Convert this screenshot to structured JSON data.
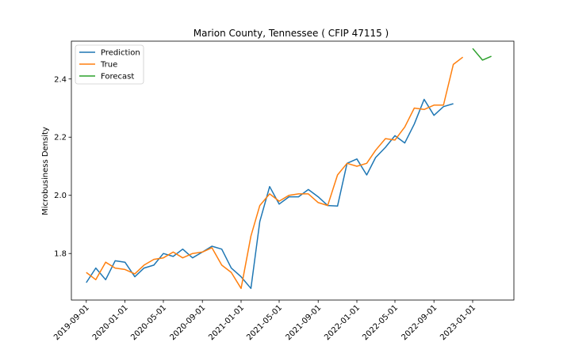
{
  "chart_data": {
    "type": "line",
    "title": "Marion County, Tennessee ( CFIP 47115 )",
    "xlabel": "",
    "ylabel": "Microbusiness Density",
    "xlim": [
      "2019-07-16",
      "2023-05-11"
    ],
    "ylim": [
      1.64,
      2.53
    ],
    "x_ticks": [
      "2019-09-01",
      "2020-01-01",
      "2020-05-01",
      "2020-09-01",
      "2021-01-01",
      "2021-05-01",
      "2021-09-01",
      "2022-01-01",
      "2022-05-01",
      "2022-09-01",
      "2023-01-01"
    ],
    "y_ticks": [
      "1.8",
      "2.0",
      "2.2",
      "2.4"
    ],
    "legend_location": "upper-left",
    "grid": false,
    "series": [
      {
        "name": "Prediction",
        "color": "#1f77b4",
        "x": [
          "2019-09-01",
          "2019-10-01",
          "2019-11-01",
          "2019-12-01",
          "2020-01-01",
          "2020-02-01",
          "2020-03-01",
          "2020-04-01",
          "2020-05-01",
          "2020-06-01",
          "2020-07-01",
          "2020-08-01",
          "2020-09-01",
          "2020-10-01",
          "2020-11-01",
          "2020-12-01",
          "2021-01-01",
          "2021-02-01",
          "2021-03-01",
          "2021-04-01",
          "2021-05-01",
          "2021-06-01",
          "2021-07-01",
          "2021-08-01",
          "2021-09-01",
          "2021-10-01",
          "2021-11-01",
          "2021-12-01",
          "2022-01-01",
          "2022-02-01",
          "2022-03-01",
          "2022-04-01",
          "2022-05-01",
          "2022-06-01",
          "2022-07-01",
          "2022-08-01",
          "2022-09-01",
          "2022-10-01",
          "2022-11-01"
        ],
        "values": [
          1.7,
          1.75,
          1.71,
          1.775,
          1.77,
          1.72,
          1.75,
          1.76,
          1.8,
          1.79,
          1.815,
          1.785,
          1.805,
          1.825,
          1.815,
          1.75,
          1.72,
          1.68,
          1.91,
          2.03,
          1.97,
          1.995,
          1.995,
          2.02,
          1.995,
          1.965,
          1.963,
          2.11,
          2.125,
          2.07,
          2.13,
          2.165,
          2.205,
          2.18,
          2.245,
          2.33,
          2.275,
          2.305,
          2.315
        ]
      },
      {
        "name": "True",
        "color": "#ff7f0e",
        "x": [
          "2019-09-01",
          "2019-10-01",
          "2019-11-01",
          "2019-12-01",
          "2020-01-01",
          "2020-02-01",
          "2020-03-01",
          "2020-04-01",
          "2020-05-01",
          "2020-06-01",
          "2020-07-01",
          "2020-08-01",
          "2020-09-01",
          "2020-10-01",
          "2020-11-01",
          "2020-12-01",
          "2021-01-01",
          "2021-02-01",
          "2021-03-01",
          "2021-04-01",
          "2021-05-01",
          "2021-06-01",
          "2021-07-01",
          "2021-08-01",
          "2021-09-01",
          "2021-10-01",
          "2021-11-01",
          "2021-12-01",
          "2022-01-01",
          "2022-02-01",
          "2022-03-01",
          "2022-04-01",
          "2022-05-01",
          "2022-06-01",
          "2022-07-01",
          "2022-08-01",
          "2022-09-01",
          "2022-10-01",
          "2022-11-01",
          "2022-12-01"
        ],
        "values": [
          1.735,
          1.71,
          1.77,
          1.75,
          1.745,
          1.73,
          1.76,
          1.78,
          1.785,
          1.805,
          1.785,
          1.8,
          1.805,
          1.82,
          1.76,
          1.735,
          1.68,
          1.86,
          1.965,
          2.005,
          1.98,
          2.0,
          2.005,
          2.005,
          1.975,
          1.965,
          2.07,
          2.11,
          2.1,
          2.11,
          2.155,
          2.195,
          2.19,
          2.235,
          2.3,
          2.295,
          2.31,
          2.31,
          2.45,
          2.475
        ]
      },
      {
        "name": "Forecast",
        "color": "#2ca02c",
        "x": [
          "2023-01-01",
          "2023-02-01",
          "2023-03-01"
        ],
        "values": [
          2.505,
          2.465,
          2.478
        ]
      }
    ]
  }
}
